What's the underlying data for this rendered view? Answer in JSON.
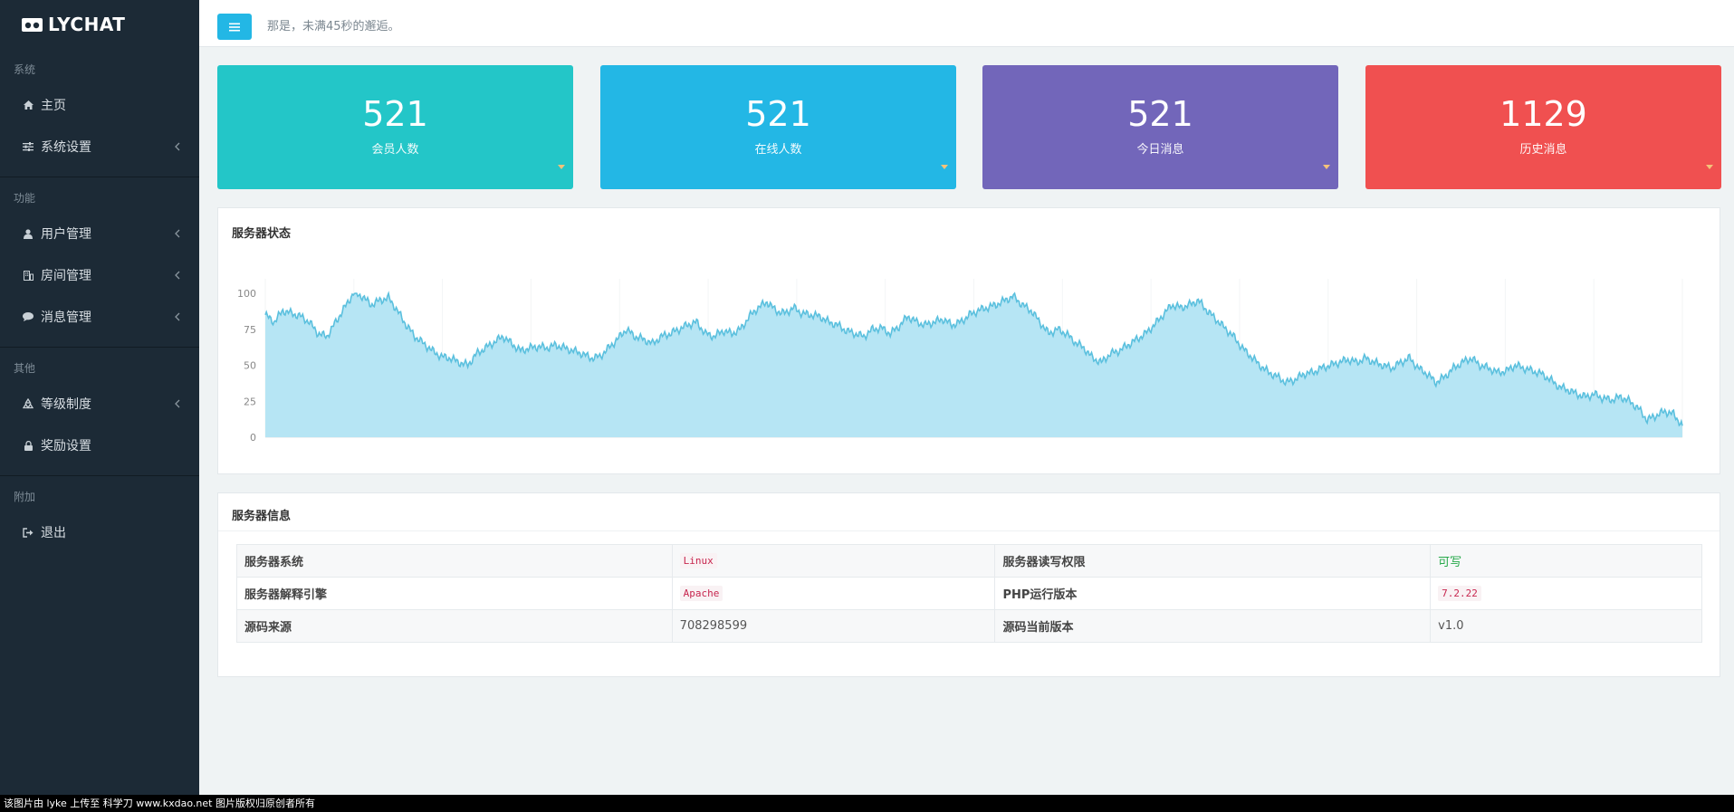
{
  "brand": {
    "name": "LYCHAT"
  },
  "sidebar": {
    "sections": [
      {
        "title": "系统",
        "items": [
          {
            "label": "主页",
            "icon": "home-icon",
            "has_chevron": false
          },
          {
            "label": "系统设置",
            "icon": "sliders-icon",
            "has_chevron": true
          }
        ]
      },
      {
        "title": "功能",
        "items": [
          {
            "label": "用户管理",
            "icon": "user-icon",
            "has_chevron": true
          },
          {
            "label": "房间管理",
            "icon": "room-icon",
            "has_chevron": true
          },
          {
            "label": "消息管理",
            "icon": "chat-bubble-icon",
            "has_chevron": true
          }
        ]
      },
      {
        "title": "其他",
        "items": [
          {
            "label": "等级制度",
            "icon": "recycle-icon",
            "has_chevron": true
          },
          {
            "label": "奖励设置",
            "icon": "lock-icon",
            "has_chevron": false
          }
        ]
      },
      {
        "title": "附加",
        "items": [
          {
            "label": "退出",
            "icon": "sign-out-icon",
            "has_chevron": false
          }
        ]
      }
    ]
  },
  "header": {
    "quote": "那是，未满45秒的邂逅。"
  },
  "stats": [
    {
      "value": "521",
      "label": "会员人数",
      "color": "#23c6c8"
    },
    {
      "value": "521",
      "label": "在线人数",
      "color": "#23b7e5"
    },
    {
      "value": "521",
      "label": "今日消息",
      "color": "#7266ba"
    },
    {
      "value": "1129",
      "label": "历史消息",
      "color": "#f05050"
    }
  ],
  "server_status": {
    "title": "服务器状态",
    "chart_data": {
      "type": "area",
      "title": "",
      "xlabel": "",
      "ylabel": "",
      "ylim": [
        0,
        100
      ],
      "yticks": [
        "0",
        "25",
        "50",
        "75",
        "100"
      ],
      "grid": true,
      "legend": "none",
      "color": "#5bc0de",
      "fill": "#b6e5f4",
      "series": [
        {
          "values": [
            85,
            80,
            88,
            86,
            84,
            80,
            72,
            70,
            80,
            90,
            100,
            98,
            92,
            95,
            97,
            88,
            78,
            70,
            65,
            60,
            56,
            55,
            52,
            50,
            58,
            62,
            66,
            70,
            65,
            60,
            62,
            63,
            62,
            64,
            62,
            60,
            58,
            55,
            56,
            62,
            68,
            75,
            70,
            68,
            65,
            70,
            72,
            75,
            78,
            80,
            72,
            70,
            74,
            72,
            75,
            84,
            90,
            94,
            88,
            86,
            90,
            86,
            85,
            84,
            80,
            78,
            74,
            72,
            70,
            75,
            76,
            72,
            77,
            84,
            80,
            78,
            80,
            82,
            78,
            80,
            85,
            88,
            90,
            92,
            95,
            98,
            92,
            88,
            80,
            72,
            75,
            72,
            66,
            62,
            55,
            52,
            58,
            60,
            64,
            68,
            72,
            78,
            85,
            92,
            90,
            92,
            95,
            88,
            82,
            76,
            70,
            62,
            56,
            50,
            45,
            42,
            38,
            40,
            44,
            45,
            48,
            50,
            52,
            54,
            52,
            55,
            52,
            50,
            48,
            52,
            55,
            48,
            44,
            38,
            42,
            48,
            52,
            55,
            50,
            48,
            45,
            46,
            50,
            48,
            46,
            44,
            40,
            35,
            33,
            30,
            28,
            30,
            27,
            26,
            28,
            25,
            20,
            12,
            15,
            18,
            16,
            8
          ]
        }
      ]
    }
  },
  "server_info": {
    "title": "服务器信息",
    "rows": [
      {
        "k1": "服务器系统",
        "v1": "Linux",
        "k2": "服务器读写权限",
        "v2": "可写"
      },
      {
        "k1": "服务器解释引擎",
        "v1": "Apache",
        "k2": "PHP运行版本",
        "v2": "7.2.22"
      },
      {
        "k1": "源码来源",
        "v1": "708298599",
        "k2": "源码当前版本",
        "v2": "v1.0"
      }
    ]
  },
  "footer": {
    "text": "该图片由 lyke 上传至 科学刀 www.kxdao.net 图片版权归原创者所有"
  }
}
